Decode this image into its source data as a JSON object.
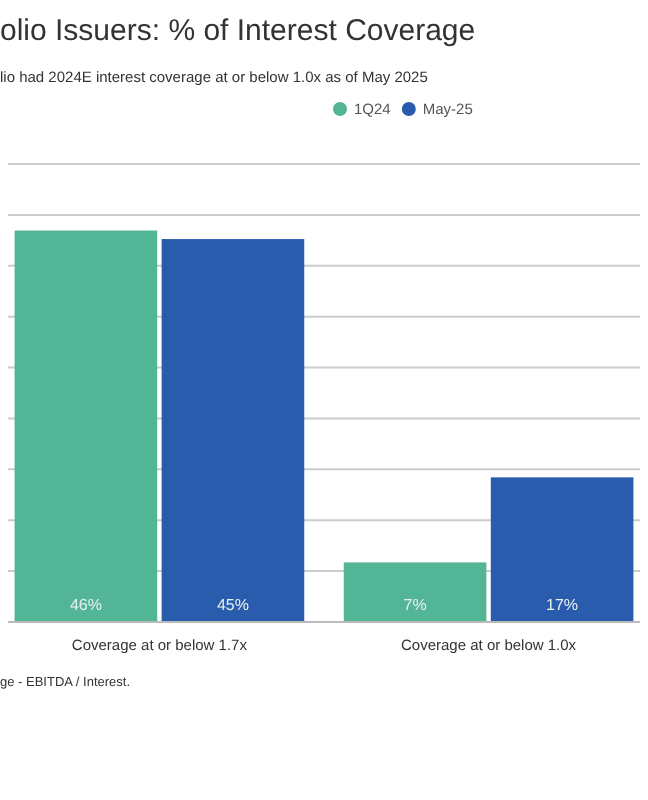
{
  "chart_data": {
    "type": "bar",
    "title": "olio Issuers: % of Interest Coverage",
    "subtitle": "lio had 2024E interest coverage at or below 1.0x as of May 2025",
    "categories": [
      "Coverage at or below 1.7x",
      "Coverage at or below 1.0x"
    ],
    "series": [
      {
        "name": "1Q24",
        "color": "#52b596",
        "values": [
          46,
          7
        ],
        "value_labels": [
          "46%",
          "7%"
        ]
      },
      {
        "name": "May-25",
        "color": "#2a5cae",
        "values": [
          45,
          17
        ],
        "value_labels": [
          "45%",
          "17%"
        ]
      }
    ],
    "grid": "y",
    "tick_labels": "x",
    "legend": "top",
    "annotations": [
      "ge - EBITDA / Interest."
    ]
  }
}
